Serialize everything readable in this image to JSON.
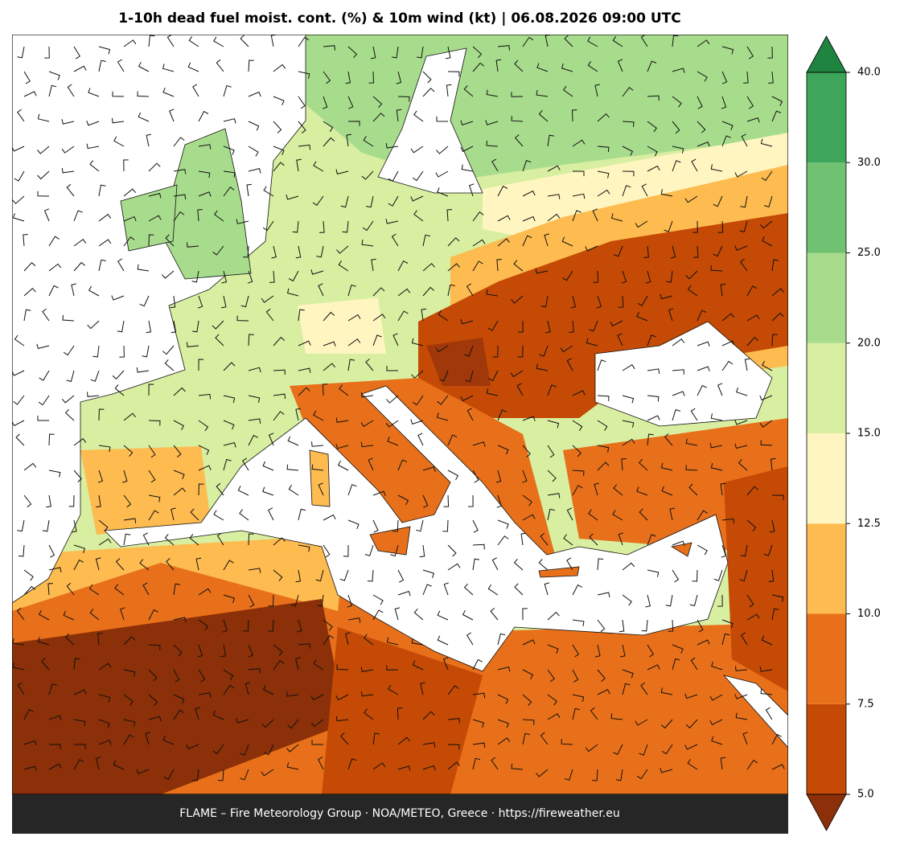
{
  "title": "1-10h dead fuel moist. cont. (%) & 10m wind (kt)  |  06.08.2026 09:00 UTC",
  "footer": "FLAME – Fire Meteorology Group · NOA/METEO, Greece · https://fireweather.eu",
  "colorbar": {
    "ticks": [
      {
        "value": 5,
        "label": "5.0"
      },
      7.5,
      {
        "value": 10,
        "label": "10.0"
      },
      12.5,
      {
        "value": 15,
        "label": "15.0"
      },
      {
        "value": 20,
        "label": "20.0"
      },
      {
        "value": 25,
        "label": "25.0"
      },
      {
        "value": 30,
        "label": "30.0"
      },
      {
        "value": 40,
        "label": "40.0"
      }
    ],
    "colors": [
      "#c44a05",
      "#e8701a",
      "#fdbb50",
      "#fff5c0",
      "#d8eea0",
      "#a8dc8d",
      "#70c171",
      "#3da65a"
    ],
    "under_color": "#8b3008",
    "over_color": "#1e8440"
  }
}
